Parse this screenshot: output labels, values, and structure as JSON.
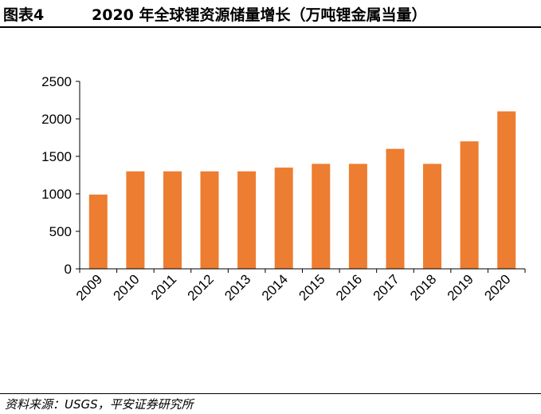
{
  "figure": {
    "label": "图表4",
    "title": "2020 年全球锂资源储量增长（万吨锂金属当量）",
    "source": "资料来源：USGS，平安证券研究所"
  },
  "colors": {
    "bar": "#ED7D31",
    "axis": "#000000",
    "text": "#000000"
  },
  "chart_data": {
    "type": "bar",
    "title": "",
    "xlabel": "",
    "ylabel": "",
    "categories": [
      "2009",
      "2010",
      "2011",
      "2012",
      "2013",
      "2014",
      "2015",
      "2016",
      "2017",
      "2018",
      "2019",
      "2020"
    ],
    "values": [
      990,
      1300,
      1300,
      1300,
      1300,
      1350,
      1400,
      1400,
      1600,
      1400,
      1700,
      2100
    ],
    "ylim": [
      0,
      2500
    ],
    "yticks": [
      0,
      500,
      1000,
      1500,
      2000,
      2500
    ],
    "grid": false,
    "legend": "none"
  }
}
